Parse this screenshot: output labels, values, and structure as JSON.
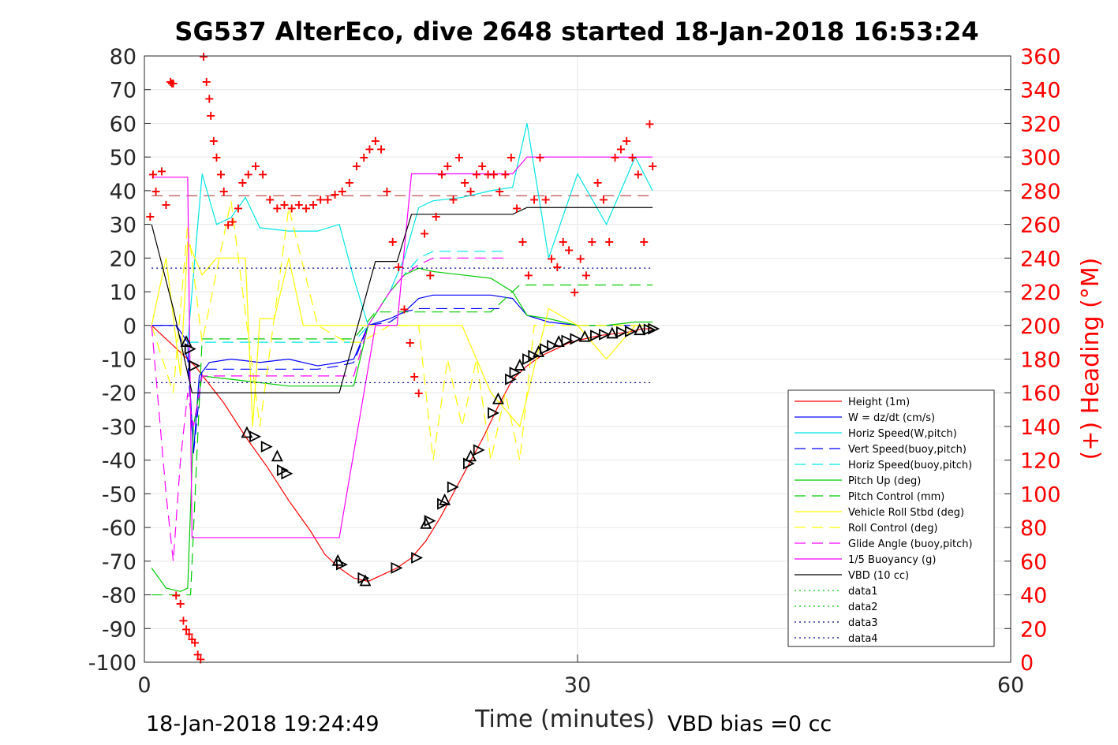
{
  "chart_data": {
    "type": "line",
    "title": "SG537 AlterEco, dive 2648 started 18-Jan-2018 16:53:24",
    "xlabel": "Time (minutes)",
    "ylabel_right": "(+) Heading (°M)",
    "xlim": [
      0,
      60
    ],
    "ylim": [
      -100,
      80
    ],
    "y2lim": [
      0,
      360
    ],
    "xticks": [
      "0",
      "30",
      "60"
    ],
    "yticks": [
      "80",
      "70",
      "60",
      "50",
      "40",
      "30",
      "20",
      "10",
      "0",
      "-10",
      "-20",
      "-30",
      "-40",
      "-50",
      "-60",
      "-70",
      "-80",
      "-90",
      "-100"
    ],
    "y2ticks": [
      "360",
      "340",
      "320",
      "300",
      "280",
      "260",
      "240",
      "220",
      "200",
      "180",
      "160",
      "140",
      "120",
      "100",
      "80",
      "60",
      "40",
      "20",
      "0"
    ],
    "grid": true,
    "legend_position": "bottom-right",
    "series": [
      {
        "name": "Height (1m)",
        "color": "#ff0000",
        "style": "solid",
        "x": [
          0.5,
          3.5,
          5.5,
          7,
          8.5,
          10,
          11.5,
          12.5,
          13.5,
          14.5,
          15.5,
          16.5,
          17.5,
          18.5,
          19.5,
          20.5,
          21.5,
          22.5,
          23.5,
          24.5,
          25.5,
          26.5,
          27.5,
          28.5,
          29.5,
          30.5,
          31.5,
          32.5,
          33.5,
          34.5,
          35.2
        ],
        "values": [
          0,
          -12,
          -23,
          -33,
          -42,
          -52,
          -61,
          -68,
          -72,
          -75,
          -76,
          -74,
          -72,
          -69,
          -64,
          -57,
          -49,
          -41,
          -33,
          -24,
          -16,
          -12,
          -9,
          -7,
          -5,
          -4,
          -3,
          -2.5,
          -2,
          -1,
          -1
        ]
      },
      {
        "name": "W = dz/dt (cm/s)",
        "color": "#0000ff",
        "style": "solid",
        "x": [
          0.5,
          2.2,
          3,
          3.4,
          3.8,
          4.5,
          6,
          8,
          10,
          12,
          13.5,
          14.5,
          15.5,
          17,
          18,
          19,
          20,
          22,
          24,
          25.5,
          26.5,
          28,
          30,
          32,
          34,
          35.2
        ],
        "values": [
          0,
          0,
          -5,
          -38,
          -15,
          -11,
          -10,
          -11,
          -10,
          -12,
          -11,
          -10,
          0,
          2,
          4,
          8,
          9,
          9,
          9,
          8,
          3,
          1,
          0,
          0,
          0,
          0
        ]
      },
      {
        "name": "Horiz Speed(W,pitch)",
        "color": "#00e5e5",
        "style": "solid",
        "x": [
          3,
          4,
          5,
          6,
          7,
          8,
          10,
          12,
          13.5,
          14.5,
          15.5,
          17,
          18,
          19,
          20,
          22,
          24,
          25.5,
          26.5,
          28,
          30,
          32,
          34,
          35.2
        ],
        "values": [
          -5,
          45,
          30,
          32,
          38,
          29,
          28,
          28,
          30,
          14,
          0,
          10,
          20,
          35,
          37,
          38,
          40,
          41,
          60,
          20,
          45,
          30,
          50,
          40
        ]
      },
      {
        "name": "Vert Speed(buoy,pitch)",
        "color": "#0000ff",
        "style": "dash",
        "x": [
          0.5,
          2.2,
          3,
          3.4,
          4,
          6,
          8,
          10,
          12,
          13.5,
          14.5,
          15.5,
          17,
          18,
          19,
          20,
          22,
          24,
          25
        ],
        "values": [
          0,
          0,
          -10,
          -38,
          -13,
          -13,
          -13,
          -13,
          -13,
          -12,
          -11,
          0,
          1,
          4,
          5,
          5,
          5,
          5,
          5
        ]
      },
      {
        "name": "Horiz Speed(buoy,pitch)",
        "color": "#00e5e5",
        "style": "dash",
        "x": [
          3,
          4,
          6,
          8,
          10,
          12,
          13.5,
          14.5,
          15.5,
          17,
          18,
          19,
          20,
          22,
          24,
          25
        ],
        "values": [
          -5,
          -5,
          -5,
          -5,
          -5,
          -5,
          -5,
          -5,
          0,
          10,
          15,
          20,
          22,
          22,
          22,
          22
        ]
      },
      {
        "name": "Pitch Up (deg)",
        "color": "#00cc00",
        "style": "solid",
        "x": [
          0.5,
          1.5,
          2.5,
          3,
          3.4,
          4,
          6,
          8,
          10,
          12,
          13.5,
          14.5,
          15.5,
          17,
          18,
          19,
          20,
          22,
          24,
          25.5,
          26.5,
          28,
          30,
          32,
          34,
          35.2
        ],
        "values": [
          -72,
          -78,
          -79,
          -78,
          -30,
          -15,
          -16,
          -17,
          -18,
          -18,
          -18,
          -18,
          0,
          10,
          15,
          17,
          16,
          15,
          14,
          10,
          3,
          2,
          0,
          0,
          1,
          1
        ]
      },
      {
        "name": "Pitch Control (mm)",
        "color": "#00cc00",
        "style": "dash",
        "x": [
          0.5,
          2.5,
          3.2,
          4,
          8,
          12,
          14.5,
          16,
          18,
          20,
          22,
          24,
          26,
          28,
          30,
          32,
          35.2
        ],
        "values": [
          -80,
          -80,
          -80,
          -4,
          -4,
          -4,
          -4,
          4,
          4,
          4,
          4,
          4,
          12,
          12,
          12,
          12,
          12
        ]
      },
      {
        "name": "Vehicle Roll Stbd (deg)",
        "color": "#ffff00",
        "style": "solid",
        "x": [
          0.5,
          1.5,
          2.5,
          3,
          4,
          5,
          6,
          7,
          7.5,
          8,
          9,
          10,
          11,
          12,
          13,
          14,
          15,
          16,
          18,
          20,
          22,
          24,
          26,
          28,
          30,
          32,
          34,
          35.2
        ],
        "values": [
          0,
          20,
          -15,
          25,
          15,
          20,
          20,
          20,
          -30,
          2,
          2,
          20,
          0,
          0,
          0,
          0,
          0,
          0,
          0,
          0,
          0,
          -20,
          -30,
          5,
          0,
          -10,
          0,
          0
        ]
      },
      {
        "name": "Roll Control (deg)",
        "color": "#ffff00",
        "style": "dash",
        "x": [
          0.5,
          2,
          3,
          4,
          6,
          8,
          10,
          12,
          14,
          15,
          17,
          19,
          20,
          21,
          22,
          23,
          24,
          25,
          26,
          27,
          28,
          30,
          32,
          34,
          35.2
        ],
        "values": [
          0,
          -20,
          30,
          -5,
          37,
          -30,
          35,
          0,
          -5,
          -5,
          0,
          0,
          -40,
          -10,
          -30,
          -10,
          -40,
          -20,
          -40,
          0,
          0,
          0,
          0,
          0,
          0
        ]
      },
      {
        "name": "Glide Angle (buoy,pitch)",
        "color": "#ff00ff",
        "style": "dash",
        "x": [
          0.5,
          1.5,
          2,
          2.5,
          3,
          3.4,
          4,
          6,
          8,
          10,
          12,
          13.5,
          14.5,
          15.5,
          17,
          18,
          19,
          20,
          22,
          24,
          25
        ],
        "values": [
          0,
          -50,
          -70,
          -40,
          -20,
          -30,
          -15,
          -15,
          -15,
          -15,
          -15,
          -15,
          -15,
          0,
          10,
          15,
          18,
          20,
          20,
          20,
          20
        ]
      },
      {
        "name": "1/5 Buoyancy (g)",
        "color": "#ff00ff",
        "style": "solid",
        "x": [
          0.5,
          3,
          3.3,
          8,
          12,
          13.5,
          16,
          17.5,
          18.5,
          24.5,
          25.5,
          26.5,
          30,
          35.2
        ],
        "values": [
          44,
          44,
          -63,
          -63,
          -63,
          -63,
          0,
          0,
          45,
          45,
          45,
          50,
          50,
          50
        ]
      },
      {
        "name": "VBD (10 cc)",
        "color": "#000000",
        "style": "solid",
        "x": [
          0.5,
          2,
          3.3,
          8,
          12,
          13.5,
          16,
          17.5,
          18.5,
          24.5,
          25.5,
          26.5,
          30,
          32,
          35.2
        ],
        "values": [
          30,
          5,
          -20,
          -20,
          -20,
          -20,
          19,
          19,
          33,
          33,
          33,
          35,
          35,
          35,
          35
        ]
      },
      {
        "name": "data1",
        "color": "#00cc00",
        "style": "dot",
        "x": [],
        "values": []
      },
      {
        "name": "data2",
        "color": "#00cc00",
        "style": "dot",
        "x": [],
        "values": []
      },
      {
        "name": "data3",
        "color": "#00008b",
        "style": "dot",
        "x": [
          0.5,
          35.2
        ],
        "values": [
          17,
          17
        ]
      },
      {
        "name": "data4",
        "color": "#00008b",
        "style": "dot",
        "x": [
          0.5,
          35.2
        ],
        "values": [
          -17,
          -17
        ]
      }
    ],
    "reference_line": {
      "color": "#b22222",
      "style": "dash",
      "x": [
        0.5,
        35.2
      ],
      "values": [
        38.5,
        38.5
      ]
    },
    "heading": {
      "axis": "right",
      "color": "#ff0000",
      "x": [
        0.4,
        0.6,
        0.8,
        1.2,
        1.5,
        1.8,
        1.9,
        2.0,
        2.2,
        2.5,
        2.7,
        2.9,
        3.1,
        3.3,
        3.5,
        3.7,
        3.9,
        4.1,
        4.3,
        4.5,
        4.6,
        4.8,
        5.0,
        5.3,
        5.5,
        5.8,
        6.1,
        6.5,
        6.8,
        7.2,
        7.7,
        8.2,
        8.7,
        9.2,
        9.7,
        10.2,
        10.7,
        11.2,
        11.7,
        12.2,
        12.7,
        13.2,
        13.7,
        14.2,
        14.7,
        15.2,
        15.6,
        16.0,
        16.4,
        16.8,
        17.2,
        17.6,
        18.0,
        18.4,
        18.7,
        19.0,
        19.4,
        19.8,
        20.2,
        20.6,
        21.0,
        21.4,
        21.8,
        22.2,
        22.6,
        23.0,
        23.4,
        23.8,
        24.2,
        24.6,
        25.0,
        25.4,
        25.8,
        26.2,
        26.6,
        27.0,
        27.4,
        27.8,
        28.2,
        28.6,
        29.0,
        29.4,
        29.8,
        30.2,
        30.6,
        31.0,
        31.4,
        31.8,
        32.2,
        32.6,
        33.0,
        33.4,
        33.8,
        34.2,
        34.6,
        35.0,
        35.2
      ],
      "values": [
        265,
        290,
        280,
        292,
        272,
        345,
        344,
        344,
        40,
        35,
        25,
        20,
        17,
        14,
        12,
        5,
        2,
        360,
        345,
        335,
        325,
        310,
        300,
        290,
        280,
        260,
        262,
        270,
        285,
        290,
        295,
        290,
        275,
        270,
        272,
        270,
        272,
        270,
        272,
        275,
        275,
        278,
        280,
        285,
        295,
        300,
        305,
        310,
        305,
        280,
        250,
        235,
        210,
        190,
        170,
        160,
        255,
        230,
        265,
        290,
        295,
        275,
        300,
        285,
        280,
        290,
        295,
        290,
        290,
        280,
        290,
        300,
        270,
        250,
        230,
        275,
        300,
        275,
        240,
        235,
        250,
        245,
        220,
        240,
        230,
        250,
        285,
        275,
        250,
        300,
        305,
        310,
        300,
        290,
        250,
        320,
        295
      ]
    },
    "markers": {
      "color": "#000000",
      "x": [
        2.9,
        3.1,
        3.4,
        7.1,
        7.6,
        8.4,
        9.2,
        9.5,
        9.8,
        13.4,
        13.6,
        15.1,
        15.3,
        17.4,
        18.8,
        19.5,
        19.7,
        20.6,
        20.8,
        21.3,
        22.4,
        22.6,
        23.1,
        24.1,
        24.5,
        25.3,
        25.6,
        26.0,
        26.5,
        26.9,
        27.3,
        27.7,
        28.2,
        28.7,
        29.2,
        29.8,
        30.5,
        31.2,
        31.8,
        32.4,
        33.0,
        33.6,
        34.3,
        34.9,
        35.2
      ],
      "values": [
        -5,
        -7,
        -12,
        -32,
        -33,
        -36,
        -39,
        -43,
        -44,
        -70,
        -71,
        -75,
        -76,
        -72,
        -69,
        -59,
        -58,
        -53,
        -52,
        -48,
        -41,
        -39,
        -37,
        -26,
        -22,
        -16,
        -14,
        -12,
        -10,
        -9,
        -8,
        -7,
        -6,
        -5,
        -4.5,
        -4,
        -3.5,
        -3,
        -2.7,
        -2.5,
        -2,
        -1.8,
        -1.5,
        -1.2,
        -1
      ]
    }
  },
  "footer": {
    "timestamp": "18-Jan-2018 19:24:49",
    "vbd_bias": "VBD bias =0 cc"
  }
}
